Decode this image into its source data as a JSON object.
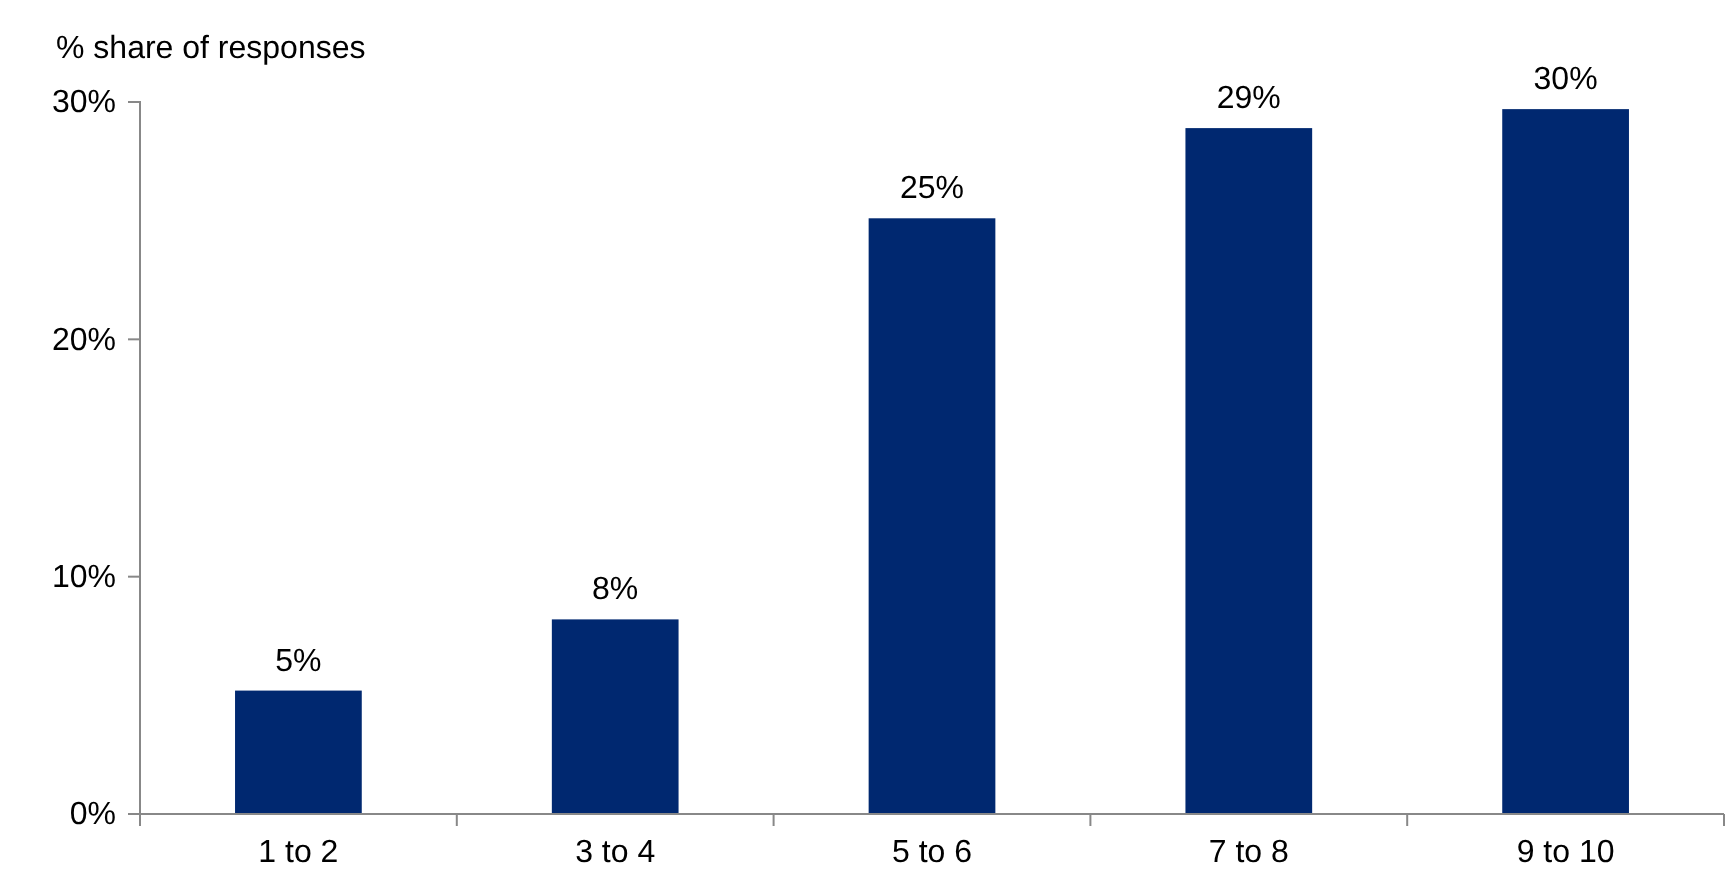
{
  "chart_data": {
    "type": "bar",
    "ylabel": "% share of responses",
    "categories": [
      "1 to 2",
      "3 to 4",
      "5 to 6",
      "7 to 8",
      "9 to 10"
    ],
    "values": [
      5.2,
      8.2,
      25.1,
      28.9,
      29.7
    ],
    "value_labels": [
      "5%",
      "8%",
      "25%",
      "29%",
      "30%"
    ],
    "color": "#002870",
    "ylim": [
      0,
      30
    ],
    "yticks": [
      {
        "value": 0,
        "label": "0%"
      },
      {
        "value": 10,
        "label": "10%"
      },
      {
        "value": 20,
        "label": "20%"
      },
      {
        "value": 30,
        "label": "30%"
      }
    ],
    "grid": false
  }
}
